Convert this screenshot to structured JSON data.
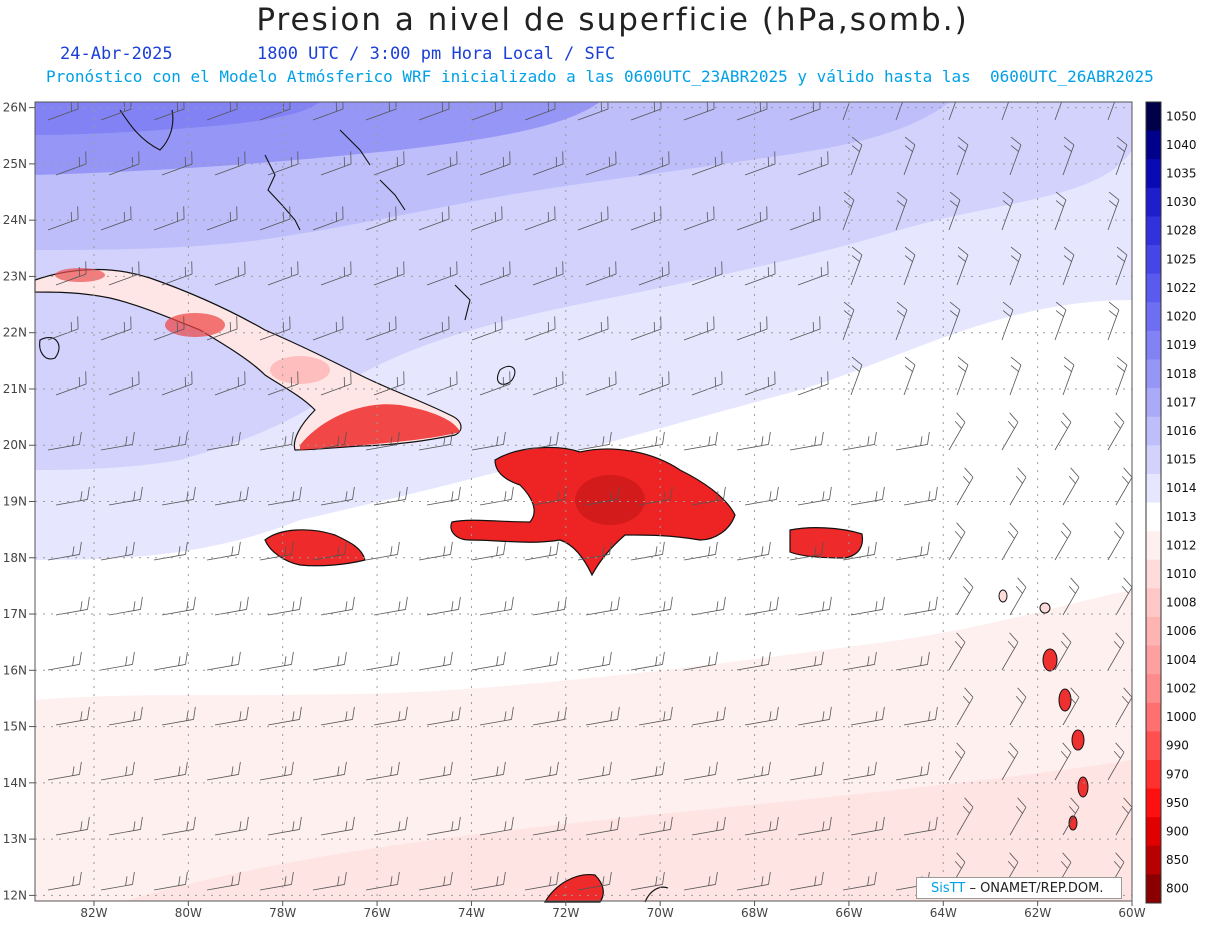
{
  "title": "Presion a nivel de superficie (hPa,somb.)",
  "date": "24-Abr-2025",
  "time": "1800 UTC / 3:00 pm Hora Local / SFC",
  "forecast_note": "Pronóstico con el Modelo Atmósferico WRF inicializado a las 0600UTC_23ABR2025 y válido hasta las  0600UTC_26ABR2025",
  "lat_labels": [
    "26N",
    "25N",
    "24N",
    "23N",
    "22N",
    "21N",
    "20N",
    "19N",
    "18N",
    "17N",
    "16N",
    "15N",
    "14N",
    "13N",
    "12N"
  ],
  "lon_labels": [
    "82W",
    "80W",
    "78W",
    "76W",
    "74W",
    "72W",
    "70W",
    "68W",
    "66W",
    "64W",
    "62W",
    "60W"
  ],
  "colorbar": {
    "levels": [
      "1050",
      "1040",
      "1035",
      "1030",
      "1028",
      "1025",
      "1022",
      "1020",
      "1019",
      "1018",
      "1017",
      "1016",
      "1015",
      "1014",
      "1013",
      "1012",
      "1010",
      "1008",
      "1006",
      "1004",
      "1002",
      "1000",
      "990",
      "970",
      "950",
      "900",
      "850",
      "800"
    ],
    "colors": [
      "#00004a",
      "#00008a",
      "#0a0ab4",
      "#1e1ecc",
      "#3232dc",
      "#4646e6",
      "#5a5aee",
      "#6e6ef2",
      "#8282f5",
      "#9696f7",
      "#aaaaf9",
      "#bebefb",
      "#d2d2fd",
      "#e6e6ff",
      "#ffffff",
      "#fff0f0",
      "#ffdcdc",
      "#ffc8c8",
      "#ffb4b4",
      "#ffa0a0",
      "#ff8c8c",
      "#ff7070",
      "#ff5050",
      "#ff3030",
      "#ff1010",
      "#e00000",
      "#b80000",
      "#8a0000"
    ]
  },
  "credit": {
    "brand": "SisTT",
    "org": "– ONAMET/REP.DOM."
  }
}
